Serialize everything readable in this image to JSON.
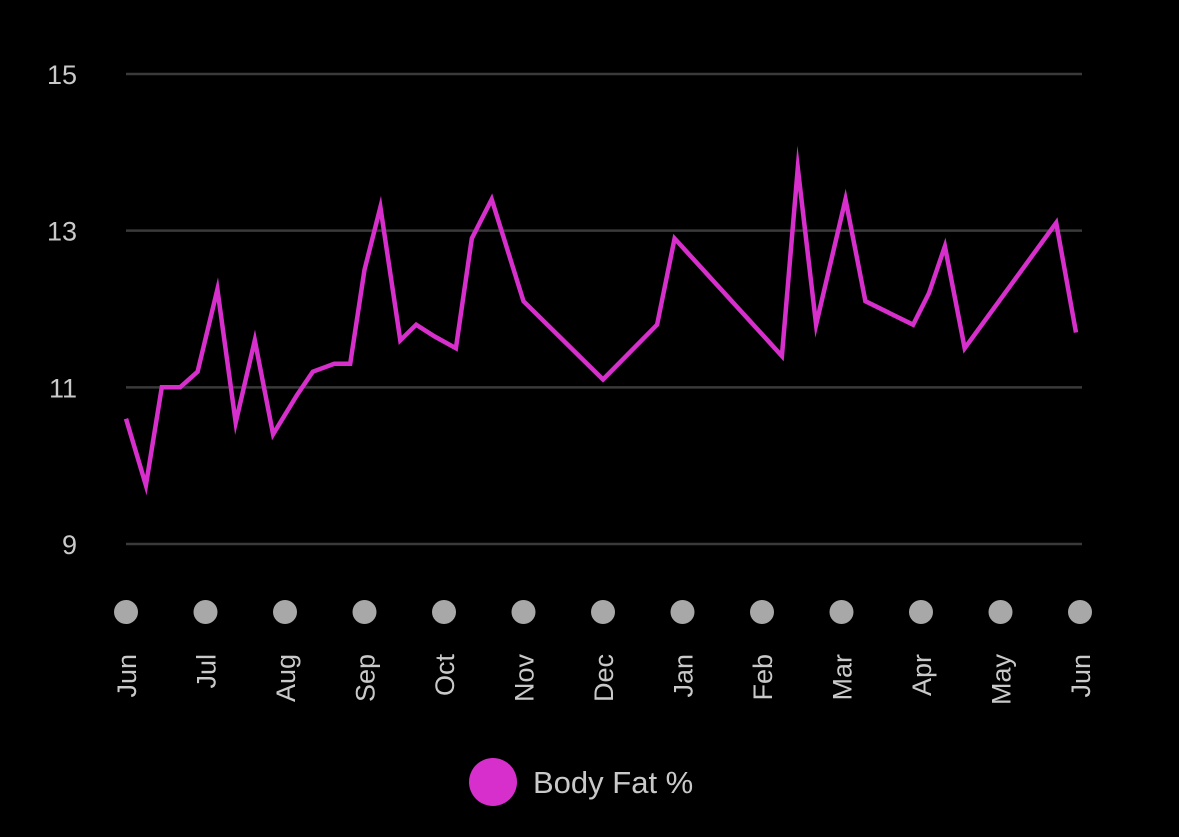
{
  "chart_data": {
    "type": "line",
    "title": "",
    "xlabel": "",
    "ylabel": "",
    "ylim": [
      9,
      15
    ],
    "yticks": [
      9,
      11,
      13,
      15
    ],
    "grid": true,
    "legend_position": "bottom-center",
    "x_tick_labels": [
      "Jun",
      "Jul",
      "Aug",
      "Sep",
      "Oct",
      "Nov",
      "Dec",
      "Jan",
      "Feb",
      "Mar",
      "Apr",
      "May",
      "Jun"
    ],
    "colors": {
      "background": "#000000",
      "gridline": "#3a3a3a",
      "tick_text": "#c9c9c9",
      "tick_dot": "#a8a8a8",
      "series": "#d62fcb"
    },
    "series": [
      {
        "name": "Body Fat %",
        "x": [
          0.0,
          0.25,
          0.45,
          0.68,
          0.9,
          1.15,
          1.38,
          1.62,
          1.85,
          2.15,
          2.35,
          2.62,
          2.82,
          3.0,
          3.2,
          3.45,
          3.65,
          3.88,
          4.15,
          4.35,
          4.6,
          5.0,
          6.0,
          6.68,
          6.9,
          8.25,
          8.45,
          8.68,
          9.05,
          9.3,
          9.9,
          10.1,
          10.3,
          10.55,
          11.7,
          11.95
        ],
        "y": [
          10.6,
          9.75,
          11.0,
          11.0,
          11.2,
          12.25,
          10.55,
          11.6,
          10.4,
          10.9,
          11.2,
          11.3,
          11.3,
          12.5,
          13.3,
          11.6,
          11.8,
          11.65,
          11.5,
          12.9,
          13.4,
          12.1,
          11.1,
          11.8,
          12.9,
          11.4,
          13.8,
          11.8,
          13.4,
          12.1,
          11.8,
          12.2,
          12.8,
          11.5,
          13.1,
          11.7
        ]
      }
    ]
  }
}
